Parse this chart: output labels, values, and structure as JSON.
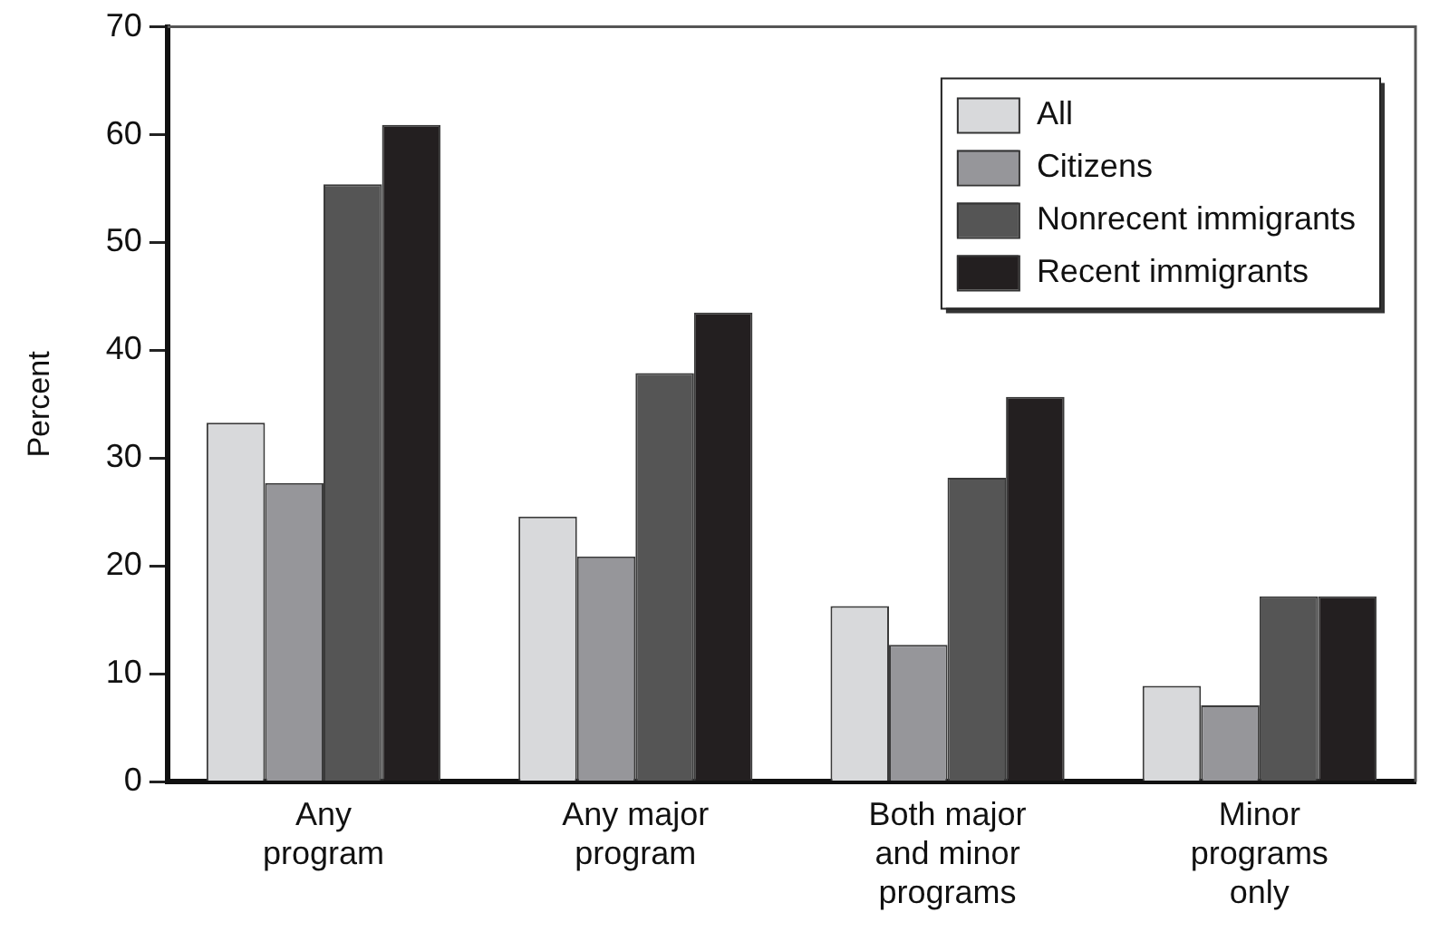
{
  "chart_data": {
    "type": "bar",
    "ylabel": "Percent",
    "categories": [
      "Any program",
      "Any major program",
      "Both major and minor programs",
      "Minor programs only"
    ],
    "series": [
      {
        "name": "All",
        "color": "#d8d9db",
        "values": [
          33.3,
          24.6,
          16.3,
          8.9
        ]
      },
      {
        "name": "Citizens",
        "color": "#96969a",
        "values": [
          27.7,
          20.9,
          12.7,
          7.1
        ]
      },
      {
        "name": "Nonrecent immigrants",
        "color": "#555555",
        "values": [
          55.4,
          37.9,
          28.2,
          17.2
        ]
      },
      {
        "name": "Recent immigrants",
        "color": "#231f20",
        "values": [
          60.9,
          43.5,
          35.7,
          17.2
        ]
      }
    ],
    "ylim": [
      0,
      70
    ],
    "yticks": [
      0,
      10,
      20,
      30,
      40,
      50,
      60,
      70
    ],
    "grid": false,
    "legend": "top right"
  }
}
